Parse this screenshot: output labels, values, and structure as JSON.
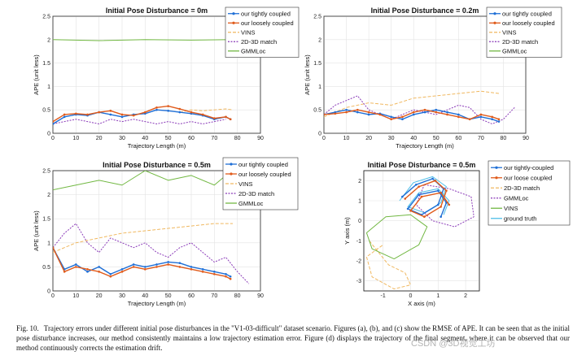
{
  "figure": {
    "caption_label": "Fig. 10.",
    "caption_text": "Trajectory errors under different initial pose disturbances in the \"V1-03-difficult\" dataset scenario. Figures (a), (b), and (c) show the RMSE of APE. It can be seen that as the initial pose disturbance increases, our method consistently maintains a low trajectory estimation error. Figure (d) displays the trajectory of the final segment, where it can be observed that our method continuously corrects the estimation drift.",
    "watermark": "CSDN @3D视觉工坊"
  },
  "colors": {
    "tight": "#1f6fd6",
    "loose": "#e05a1a",
    "vins": "#f0b860",
    "match": "#8a3ab8",
    "gmmloc": "#72b843",
    "truth": "#4dbee8"
  },
  "chart_data": [
    {
      "type": "line",
      "title": "Initial Pose Disturbance = 0m",
      "xlabel": "Trajectory Length (m)",
      "ylabel": "APE (unit less)",
      "xlim": [
        0,
        90
      ],
      "ylim": [
        0,
        2.5
      ],
      "xticks": [
        "0",
        "10",
        "20",
        "30",
        "40",
        "50",
        "60",
        "70",
        "80",
        "90"
      ],
      "yticks": [
        "0",
        "0.5",
        "1",
        "1.5",
        "2",
        "2.5"
      ],
      "legend_position": "top-right",
      "series": [
        {
          "name": "our tightly coupled",
          "key": "tight",
          "x": [
            0,
            5,
            10,
            15,
            20,
            25,
            30,
            35,
            40,
            45,
            50,
            55,
            60,
            65,
            70,
            75,
            77
          ],
          "values": [
            0.2,
            0.35,
            0.4,
            0.38,
            0.45,
            0.4,
            0.35,
            0.4,
            0.42,
            0.5,
            0.48,
            0.45,
            0.42,
            0.38,
            0.3,
            0.35,
            0.3
          ]
        },
        {
          "name": "our loosely coupled",
          "key": "loose",
          "x": [
            0,
            5,
            10,
            15,
            20,
            25,
            30,
            35,
            40,
            45,
            50,
            55,
            60,
            65,
            70,
            75,
            77
          ],
          "values": [
            0.25,
            0.4,
            0.42,
            0.4,
            0.45,
            0.48,
            0.4,
            0.38,
            0.45,
            0.55,
            0.58,
            0.52,
            0.45,
            0.4,
            0.32,
            0.35,
            0.3
          ]
        },
        {
          "name": "VINS",
          "key": "vins",
          "x": [
            55,
            60,
            65,
            70,
            75,
            78
          ],
          "values": [
            0.45,
            0.5,
            0.48,
            0.5,
            0.52,
            0.5
          ]
        },
        {
          "name": "2D-3D match",
          "key": "match",
          "x": [
            0,
            5,
            10,
            15,
            20,
            25,
            30,
            35,
            40,
            45,
            50,
            55,
            60,
            65,
            70,
            75
          ],
          "values": [
            0.2,
            0.25,
            0.3,
            0.25,
            0.2,
            0.3,
            0.25,
            0.3,
            0.25,
            0.2,
            0.25,
            0.2,
            0.25,
            0.2,
            0.25,
            0.3
          ]
        },
        {
          "name": "GMMLoc",
          "key": "gmmloc",
          "x": [
            0,
            20,
            40,
            60,
            77
          ],
          "values": [
            2.0,
            1.98,
            2.0,
            1.99,
            2.0
          ]
        }
      ]
    },
    {
      "type": "line",
      "title": "Initial Pose Disturbance = 0.2m",
      "xlabel": "Trajectory Length (m)",
      "ylabel": "APE (unit less)",
      "xlim": [
        0,
        90
      ],
      "ylim": [
        0,
        2.5
      ],
      "xticks": [
        "0",
        "10",
        "20",
        "30",
        "40",
        "50",
        "60",
        "70",
        "80",
        "90"
      ],
      "yticks": [
        "0",
        "0.5",
        "1",
        "1.5",
        "2",
        "2.5"
      ],
      "legend_position": "top-right",
      "series": [
        {
          "name": "our tightly coupled",
          "key": "tight",
          "x": [
            0,
            5,
            10,
            15,
            20,
            25,
            30,
            35,
            40,
            45,
            50,
            55,
            60,
            65,
            70,
            75,
            78
          ],
          "values": [
            0.4,
            0.45,
            0.5,
            0.45,
            0.4,
            0.42,
            0.35,
            0.3,
            0.4,
            0.45,
            0.5,
            0.45,
            0.4,
            0.3,
            0.35,
            0.3,
            0.25
          ]
        },
        {
          "name": "our loosely coupled",
          "key": "loose",
          "x": [
            0,
            5,
            10,
            15,
            20,
            25,
            30,
            35,
            40,
            45,
            50,
            55,
            60,
            65,
            70,
            75,
            78
          ],
          "values": [
            0.4,
            0.42,
            0.45,
            0.5,
            0.45,
            0.4,
            0.3,
            0.35,
            0.45,
            0.5,
            0.45,
            0.4,
            0.35,
            0.3,
            0.4,
            0.35,
            0.3
          ]
        },
        {
          "name": "VINS",
          "key": "vins",
          "x": [
            0,
            10,
            20,
            30,
            40,
            50,
            60,
            70,
            78
          ],
          "values": [
            0.35,
            0.55,
            0.65,
            0.6,
            0.75,
            0.8,
            0.85,
            0.9,
            0.85
          ]
        },
        {
          "name": "2D-3D match",
          "key": "match",
          "x": [
            0,
            5,
            10,
            15,
            20,
            25,
            30,
            35,
            40,
            45,
            50,
            55,
            60,
            65,
            70,
            75,
            80,
            85
          ],
          "values": [
            0.4,
            0.6,
            0.7,
            0.8,
            0.5,
            0.4,
            0.3,
            0.4,
            0.5,
            0.45,
            0.4,
            0.5,
            0.6,
            0.55,
            0.3,
            0.2,
            0.3,
            0.55
          ]
        },
        {
          "name": "GMMLoc",
          "key": "gmmloc",
          "x": [],
          "values": []
        }
      ]
    },
    {
      "type": "line",
      "title": "Initial Pose Disturbance = 0.5m",
      "xlabel": "Trajectory Length (m)",
      "ylabel": "APE (unit less)",
      "xlim": [
        0,
        90
      ],
      "ylim": [
        0,
        2.5
      ],
      "xticks": [
        "0",
        "10",
        "20",
        "30",
        "40",
        "50",
        "60",
        "70",
        "80",
        "90"
      ],
      "yticks": [
        "0",
        "0.5",
        "1",
        "1.5",
        "2",
        "2.5"
      ],
      "legend_position": "top-right",
      "series": [
        {
          "name": "our tightly coupled",
          "key": "tight",
          "x": [
            0,
            5,
            10,
            15,
            20,
            25,
            30,
            35,
            40,
            45,
            50,
            55,
            60,
            65,
            70,
            75,
            77
          ],
          "values": [
            0.9,
            0.45,
            0.55,
            0.4,
            0.5,
            0.35,
            0.45,
            0.55,
            0.5,
            0.55,
            0.6,
            0.58,
            0.5,
            0.45,
            0.4,
            0.35,
            0.3
          ]
        },
        {
          "name": "our loosely coupled",
          "key": "loose",
          "x": [
            0,
            5,
            10,
            15,
            20,
            25,
            30,
            35,
            40,
            45,
            50,
            55,
            60,
            65,
            70,
            75,
            77
          ],
          "values": [
            0.9,
            0.4,
            0.5,
            0.45,
            0.4,
            0.3,
            0.4,
            0.5,
            0.45,
            0.5,
            0.55,
            0.5,
            0.45,
            0.4,
            0.35,
            0.3,
            0.25
          ]
        },
        {
          "name": "VINS",
          "key": "vins",
          "x": [
            0,
            10,
            20,
            30,
            40,
            50,
            60,
            70,
            78
          ],
          "values": [
            0.8,
            1.0,
            1.1,
            1.2,
            1.25,
            1.3,
            1.35,
            1.4,
            1.4
          ]
        },
        {
          "name": "2D-3D match",
          "key": "match",
          "x": [
            0,
            5,
            10,
            15,
            20,
            25,
            30,
            35,
            40,
            45,
            50,
            55,
            60,
            65,
            70,
            75,
            80,
            85
          ],
          "values": [
            0.9,
            1.2,
            1.4,
            1.0,
            0.8,
            1.1,
            1.0,
            0.9,
            1.0,
            0.8,
            0.7,
            0.9,
            1.0,
            0.8,
            0.6,
            0.7,
            0.4,
            0.15
          ]
        },
        {
          "name": "GMMLoc",
          "key": "gmmloc",
          "x": [
            0,
            10,
            20,
            30,
            40,
            50,
            60,
            70,
            75
          ],
          "values": [
            2.1,
            2.2,
            2.3,
            2.2,
            2.5,
            2.3,
            2.4,
            2.2,
            2.4
          ]
        }
      ]
    },
    {
      "type": "line",
      "title": "Initial Pose Disturbance = 0.5m",
      "xlabel": "X axis (m)",
      "ylabel": "Y axis (m)",
      "xlim": [
        -1.7,
        2.5
      ],
      "ylim": [
        -3.5,
        2.5
      ],
      "xticks": [
        "-1",
        "0",
        "1",
        "2"
      ],
      "yticks": [
        "-3",
        "-2",
        "-1",
        "0",
        "1",
        "2"
      ],
      "legend_position": "top-right",
      "series": [
        {
          "name": "our tightly-coupled",
          "key": "tight",
          "x": [
            -0.3,
            0.2,
            0.8,
            1.2,
            1.0,
            0.4,
            -0.1,
            0.3,
            1.0,
            1.3,
            1.1
          ],
          "values": [
            1.2,
            1.8,
            2.1,
            1.6,
            0.8,
            0.3,
            0.6,
            1.3,
            1.5,
            0.9,
            0.2
          ]
        },
        {
          "name": "our loose coupled",
          "key": "loose",
          "x": [
            -0.2,
            0.3,
            0.9,
            1.3,
            1.1,
            0.5,
            0.0,
            0.4,
            1.1,
            1.4
          ],
          "values": [
            1.1,
            1.7,
            2.0,
            1.5,
            0.7,
            0.2,
            0.5,
            1.2,
            1.4,
            0.8
          ]
        },
        {
          "name": "2D-3D match",
          "key": "vins",
          "x": [
            -1.5,
            -0.8,
            -0.2,
            0.0,
            -0.6,
            -1.4,
            -1.6,
            -1.0
          ],
          "values": [
            -1.0,
            -2.2,
            -2.6,
            -3.2,
            -3.4,
            -2.8,
            -1.8,
            -1.2
          ]
        },
        {
          "name": "GMMLoc",
          "key": "match",
          "x": [
            0.5,
            1.4,
            2.2,
            2.3,
            1.6,
            0.8,
            0.2,
            0.5
          ],
          "values": [
            1.8,
            1.6,
            1.2,
            0.2,
            -0.3,
            0.0,
            0.8,
            1.8
          ]
        },
        {
          "name": "VINS",
          "key": "gmmloc",
          "x": [
            -1.6,
            -0.9,
            0.0,
            0.6,
            0.3,
            -0.6,
            -1.4,
            -1.6
          ],
          "values": [
            -0.6,
            0.2,
            0.3,
            -0.3,
            -1.2,
            -1.9,
            -1.4,
            -0.6
          ]
        },
        {
          "name": "ground truth",
          "key": "truth",
          "x": [
            -0.4,
            0.1,
            0.8,
            1.3,
            1.1,
            0.5,
            -0.1,
            0.3,
            1.0,
            1.4,
            1.2
          ],
          "values": [
            1.0,
            1.9,
            2.2,
            1.7,
            0.9,
            0.4,
            0.7,
            1.4,
            1.6,
            1.0,
            0.3
          ]
        }
      ]
    }
  ]
}
